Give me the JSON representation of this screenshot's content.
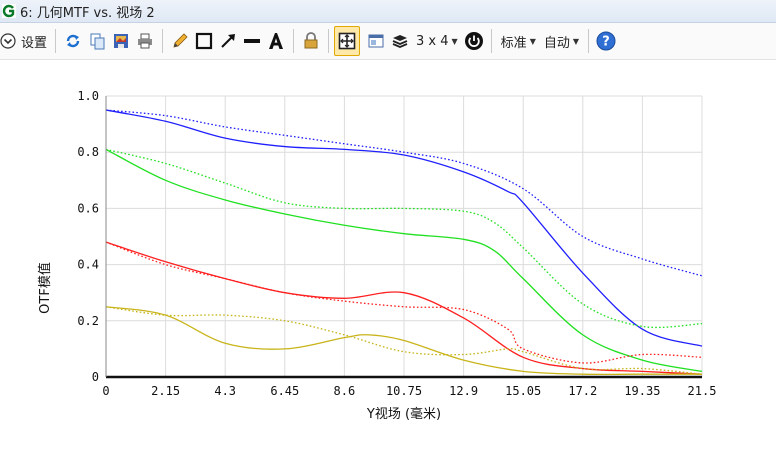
{
  "window": {
    "title": "6: 几何MTF vs. 视场 2"
  },
  "toolbar": {
    "settings_label": "设置",
    "layout_label": "3 x 4",
    "standard_label": "标准",
    "auto_label": "自动"
  },
  "chart_data": {
    "type": "line",
    "title": "",
    "xlabel": "Y视场 (毫米)",
    "ylabel": "OTF模值",
    "xlim": [
      0,
      21.5
    ],
    "ylim": [
      0,
      1.0
    ],
    "xticks": [
      "0",
      "2.15",
      "4.3",
      "6.45",
      "8.6",
      "10.75",
      "12.9",
      "15.05",
      "17.2",
      "19.35",
      "21.5"
    ],
    "yticks": [
      "0",
      "0.2",
      "0.4",
      "0.6",
      "0.8",
      "1.0"
    ],
    "grid": true,
    "series": [
      {
        "color": "#2020ff",
        "style": "solid",
        "x": [
          0,
          2.15,
          4.3,
          6.45,
          8.6,
          10.75,
          12.9,
          14.5,
          15.05,
          17.2,
          19.35,
          21.5
        ],
        "y": [
          0.95,
          0.91,
          0.85,
          0.82,
          0.81,
          0.79,
          0.73,
          0.66,
          0.62,
          0.37,
          0.17,
          0.11
        ]
      },
      {
        "color": "#2020ff",
        "style": "dotted",
        "x": [
          0,
          2.15,
          4.3,
          6.45,
          8.6,
          10.75,
          12.9,
          15.05,
          17.2,
          19.35,
          21.5
        ],
        "y": [
          0.95,
          0.93,
          0.89,
          0.86,
          0.83,
          0.8,
          0.76,
          0.67,
          0.5,
          0.42,
          0.36
        ]
      },
      {
        "color": "#20e020",
        "style": "solid",
        "x": [
          0,
          2.15,
          4.3,
          6.45,
          8.6,
          10.75,
          12.9,
          14.0,
          15.05,
          17.2,
          19.35,
          21.5
        ],
        "y": [
          0.81,
          0.7,
          0.63,
          0.58,
          0.54,
          0.51,
          0.49,
          0.45,
          0.35,
          0.15,
          0.06,
          0.02
        ]
      },
      {
        "color": "#20e020",
        "style": "dotted",
        "x": [
          0,
          2.15,
          4.3,
          6.45,
          8.6,
          10.75,
          12.9,
          14.0,
          15.05,
          17.2,
          19.35,
          21.5
        ],
        "y": [
          0.81,
          0.76,
          0.69,
          0.62,
          0.6,
          0.6,
          0.59,
          0.55,
          0.46,
          0.26,
          0.18,
          0.19
        ]
      },
      {
        "color": "#ff2020",
        "style": "solid",
        "x": [
          0,
          2.15,
          4.3,
          6.45,
          8.6,
          10.75,
          12.9,
          15.05,
          17.2,
          19.35,
          21.5
        ],
        "y": [
          0.48,
          0.41,
          0.35,
          0.3,
          0.28,
          0.3,
          0.21,
          0.07,
          0.03,
          0.02,
          0.01
        ]
      },
      {
        "color": "#ff2020",
        "style": "dotted",
        "x": [
          0,
          2.15,
          4.3,
          6.45,
          8.6,
          10.75,
          12.9,
          14.5,
          15.05,
          17.2,
          19.35,
          21.5
        ],
        "y": [
          0.48,
          0.4,
          0.35,
          0.3,
          0.27,
          0.25,
          0.24,
          0.17,
          0.1,
          0.05,
          0.08,
          0.07
        ]
      },
      {
        "color": "#c8b419",
        "style": "solid",
        "x": [
          0,
          2.15,
          4.3,
          6.45,
          8.6,
          9.5,
          10.75,
          12.9,
          15.05,
          17.2,
          19.35,
          21.5
        ],
        "y": [
          0.25,
          0.22,
          0.12,
          0.1,
          0.14,
          0.15,
          0.13,
          0.06,
          0.02,
          0.01,
          0.01,
          0.01
        ]
      },
      {
        "color": "#c8b419",
        "style": "dotted",
        "x": [
          0,
          2.15,
          4.3,
          6.45,
          8.6,
          10.75,
          12.9,
          14.5,
          15.05,
          17.2,
          19.35,
          21.5
        ],
        "y": [
          0.25,
          0.22,
          0.22,
          0.2,
          0.15,
          0.09,
          0.08,
          0.1,
          0.09,
          0.03,
          0.03,
          0.01
        ]
      }
    ]
  }
}
